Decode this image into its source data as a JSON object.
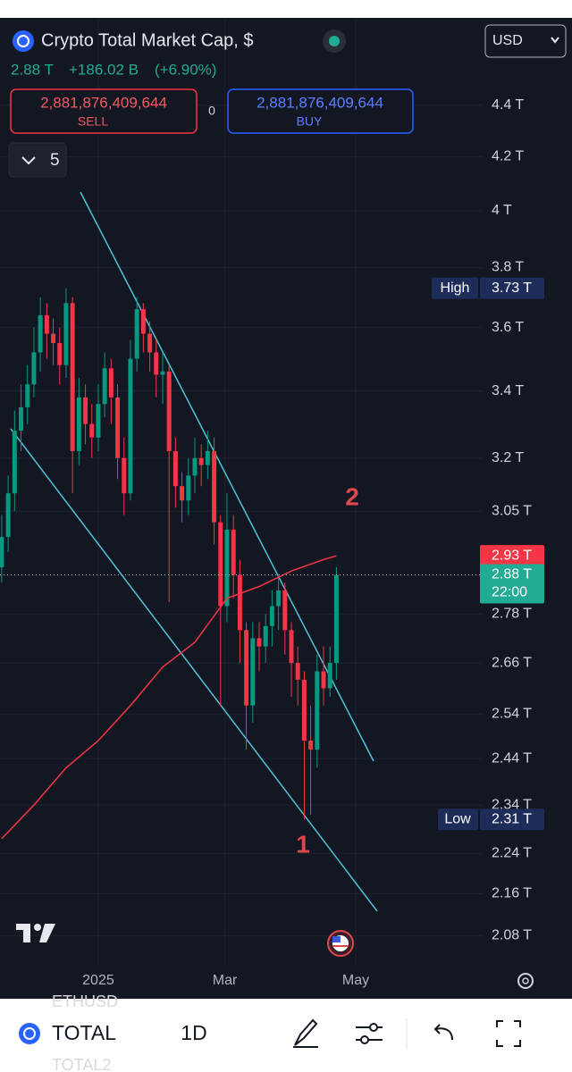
{
  "header": {
    "title": "Crypto Total Market Cap, $",
    "currency": "USD",
    "quote_price": "2.88 T",
    "change": "+186.02 B",
    "change_pct": "(+6.90%)",
    "sell_price": "2,881,876,409,644",
    "sell_label": "SELL",
    "spread": "0",
    "buy_price": "2,881,876,409,644",
    "buy_label": "BUY",
    "indicators_count": "5"
  },
  "chart_data": {
    "type": "candlestick",
    "log_scale": true,
    "grid": true,
    "ylim": [
      2.026,
      4.76
    ],
    "yticks": [
      {
        "value": 4.4,
        "label": "4.4 T"
      },
      {
        "value": 4.2,
        "label": "4.2 T"
      },
      {
        "value": 4,
        "label": "4 T"
      },
      {
        "value": 3.8,
        "label": "3.8 T"
      },
      {
        "value": 3.6,
        "label": "3.6 T"
      },
      {
        "value": 3.4,
        "label": "3.4 T"
      },
      {
        "value": 3.2,
        "label": "3.2 T"
      },
      {
        "value": 3.05,
        "label": "3.05 T"
      },
      {
        "value": 2.78,
        "label": "2.78 T"
      },
      {
        "value": 2.66,
        "label": "2.66 T"
      },
      {
        "value": 2.54,
        "label": "2.54 T"
      },
      {
        "value": 2.44,
        "label": "2.44 T"
      },
      {
        "value": 2.34,
        "label": "2.34 T"
      },
      {
        "value": 2.24,
        "label": "2.24 T"
      },
      {
        "value": 2.16,
        "label": "2.16 T"
      },
      {
        "value": 2.08,
        "label": "2.08 T"
      }
    ],
    "xlim": [
      -45.8,
      220.8
    ],
    "xticks": [
      {
        "value": 0,
        "label": "2025"
      },
      {
        "value": 59,
        "label": "Mar"
      },
      {
        "value": 120,
        "label": "May"
      }
    ],
    "series": [
      {
        "type": "candlestick",
        "up_color": "#089981",
        "down_color": "#f23645",
        "x": [
          -45,
          -42,
          -39,
          -36,
          -33,
          -30,
          -27,
          -24,
          -21,
          -18,
          -15,
          -12,
          -9,
          -6,
          -3,
          0,
          3,
          6,
          9,
          12,
          15,
          18,
          21,
          24,
          27,
          30,
          33,
          36,
          39,
          42,
          45,
          48,
          51,
          54,
          57,
          60,
          63,
          66,
          69,
          72,
          75,
          78,
          81,
          84,
          87,
          90,
          93,
          96,
          99,
          102,
          105,
          108,
          111
        ],
        "open": [
          2.9,
          2.98,
          3.1,
          3.28,
          3.35,
          3.42,
          3.52,
          3.64,
          3.58,
          3.55,
          3.48,
          3.68,
          3.22,
          3.38,
          3.3,
          3.26,
          3.36,
          3.47,
          3.38,
          3.2,
          3.1,
          3.5,
          3.66,
          3.58,
          3.52,
          3.45,
          3.46,
          3.22,
          3.12,
          3.08,
          3.15,
          3.2,
          3.18,
          3.22,
          3.02,
          2.8,
          3.0,
          2.88,
          2.74,
          2.56,
          2.72,
          2.7,
          2.75,
          2.8,
          2.84,
          2.74,
          2.66,
          2.62,
          2.48,
          2.46,
          2.64,
          2.6,
          2.66
        ],
        "high": [
          3.04,
          3.15,
          3.34,
          3.42,
          3.48,
          3.6,
          3.7,
          3.68,
          3.63,
          3.6,
          3.73,
          3.7,
          3.44,
          3.42,
          3.36,
          3.42,
          3.52,
          3.5,
          3.42,
          3.26,
          3.56,
          3.7,
          3.68,
          3.62,
          3.56,
          3.52,
          3.48,
          3.26,
          3.16,
          3.2,
          3.26,
          3.24,
          3.28,
          3.26,
          3.04,
          3.1,
          3.04,
          2.92,
          2.76,
          2.76,
          2.76,
          2.78,
          2.84,
          2.88,
          2.86,
          2.76,
          2.7,
          2.64,
          2.56,
          2.68,
          2.7,
          2.7,
          2.9
        ],
        "low": [
          2.86,
          2.94,
          3.05,
          3.22,
          3.3,
          3.38,
          3.46,
          3.5,
          3.48,
          3.42,
          3.44,
          3.1,
          3.18,
          3.24,
          3.2,
          3.22,
          3.32,
          3.3,
          3.14,
          3.04,
          3.08,
          3.46,
          3.52,
          3.46,
          3.38,
          3.36,
          2.81,
          3.06,
          3.02,
          3.04,
          3.1,
          3.12,
          3.14,
          2.96,
          2.56,
          2.76,
          2.82,
          2.66,
          2.46,
          2.52,
          2.64,
          2.66,
          2.7,
          2.74,
          2.68,
          2.58,
          2.56,
          2.31,
          2.32,
          2.42,
          2.56,
          2.58,
          2.62
        ],
        "close": [
          2.98,
          3.1,
          3.28,
          3.35,
          3.42,
          3.52,
          3.64,
          3.58,
          3.55,
          3.48,
          3.68,
          3.22,
          3.38,
          3.3,
          3.26,
          3.36,
          3.47,
          3.38,
          3.2,
          3.1,
          3.5,
          3.66,
          3.58,
          3.52,
          3.45,
          3.46,
          3.22,
          3.12,
          3.08,
          3.15,
          3.2,
          3.18,
          3.22,
          3.02,
          2.8,
          3.0,
          2.88,
          2.74,
          2.56,
          2.72,
          2.7,
          2.75,
          2.8,
          2.84,
          2.74,
          2.66,
          2.62,
          2.48,
          2.46,
          2.64,
          2.6,
          2.66,
          2.88
        ]
      },
      {
        "type": "line",
        "color": "#f23645",
        "x": [
          -45,
          -30,
          -15,
          0,
          15,
          30,
          45,
          60,
          75,
          90,
          105,
          111
        ],
        "values": [
          2.27,
          2.34,
          2.42,
          2.48,
          2.56,
          2.65,
          2.71,
          2.82,
          2.85,
          2.89,
          2.92,
          2.93
        ]
      }
    ],
    "high": {
      "text": "High",
      "value": 3.73,
      "label": "3.73 T"
    },
    "low": {
      "text": "Low",
      "value": 2.31,
      "label": "2.31 T"
    },
    "ma_last": {
      "value": 2.93,
      "label": "2.93 T"
    },
    "last": {
      "value": 2.88,
      "label": "2.88 T",
      "countdown": "22:00"
    },
    "annotations": [
      "2",
      "1"
    ]
  },
  "toolbar": {
    "ghost_above": "ETHUSD",
    "symbol": "TOTAL",
    "interval": "1D",
    "ghost_below": "TOTAL2"
  }
}
